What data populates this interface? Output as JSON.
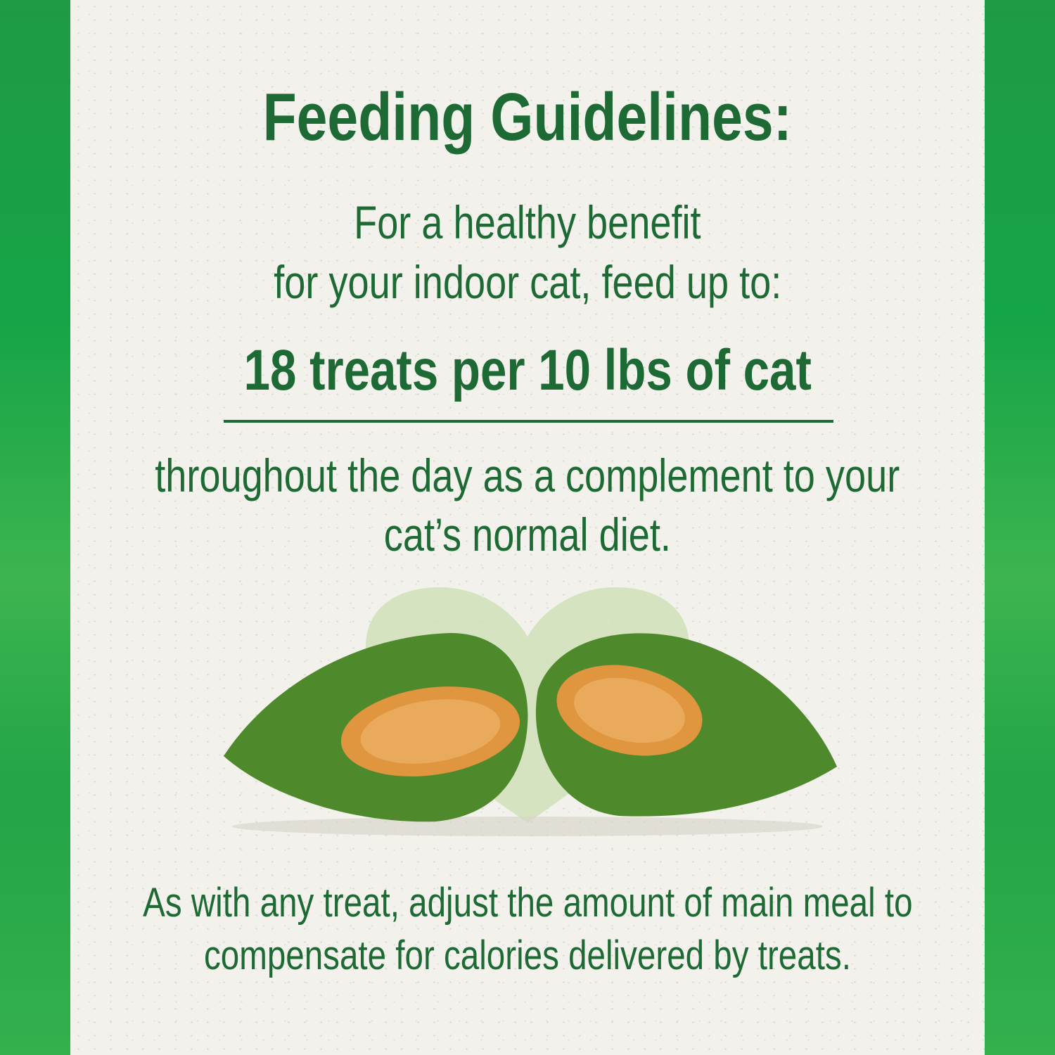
{
  "title": "Feeding Guidelines:",
  "intro": [
    "For a healthy benefit",
    "for your indoor cat, feed up to:"
  ],
  "highlight": "18 treats per 10 lbs of cat",
  "continuation": [
    "throughout the day as a complement to your",
    "cat’s normal diet."
  ],
  "footnote": [
    "As with any treat, adjust the amount of main meal to",
    "compensate for calories delivered by treats."
  ],
  "colors": {
    "text": "#1d6a34",
    "stripe": "#1fa347",
    "background": "#f3f1ec",
    "heart": "#c9deb0",
    "treat_shell": "#4f8a2a",
    "treat_filling": "#e39a4a"
  }
}
